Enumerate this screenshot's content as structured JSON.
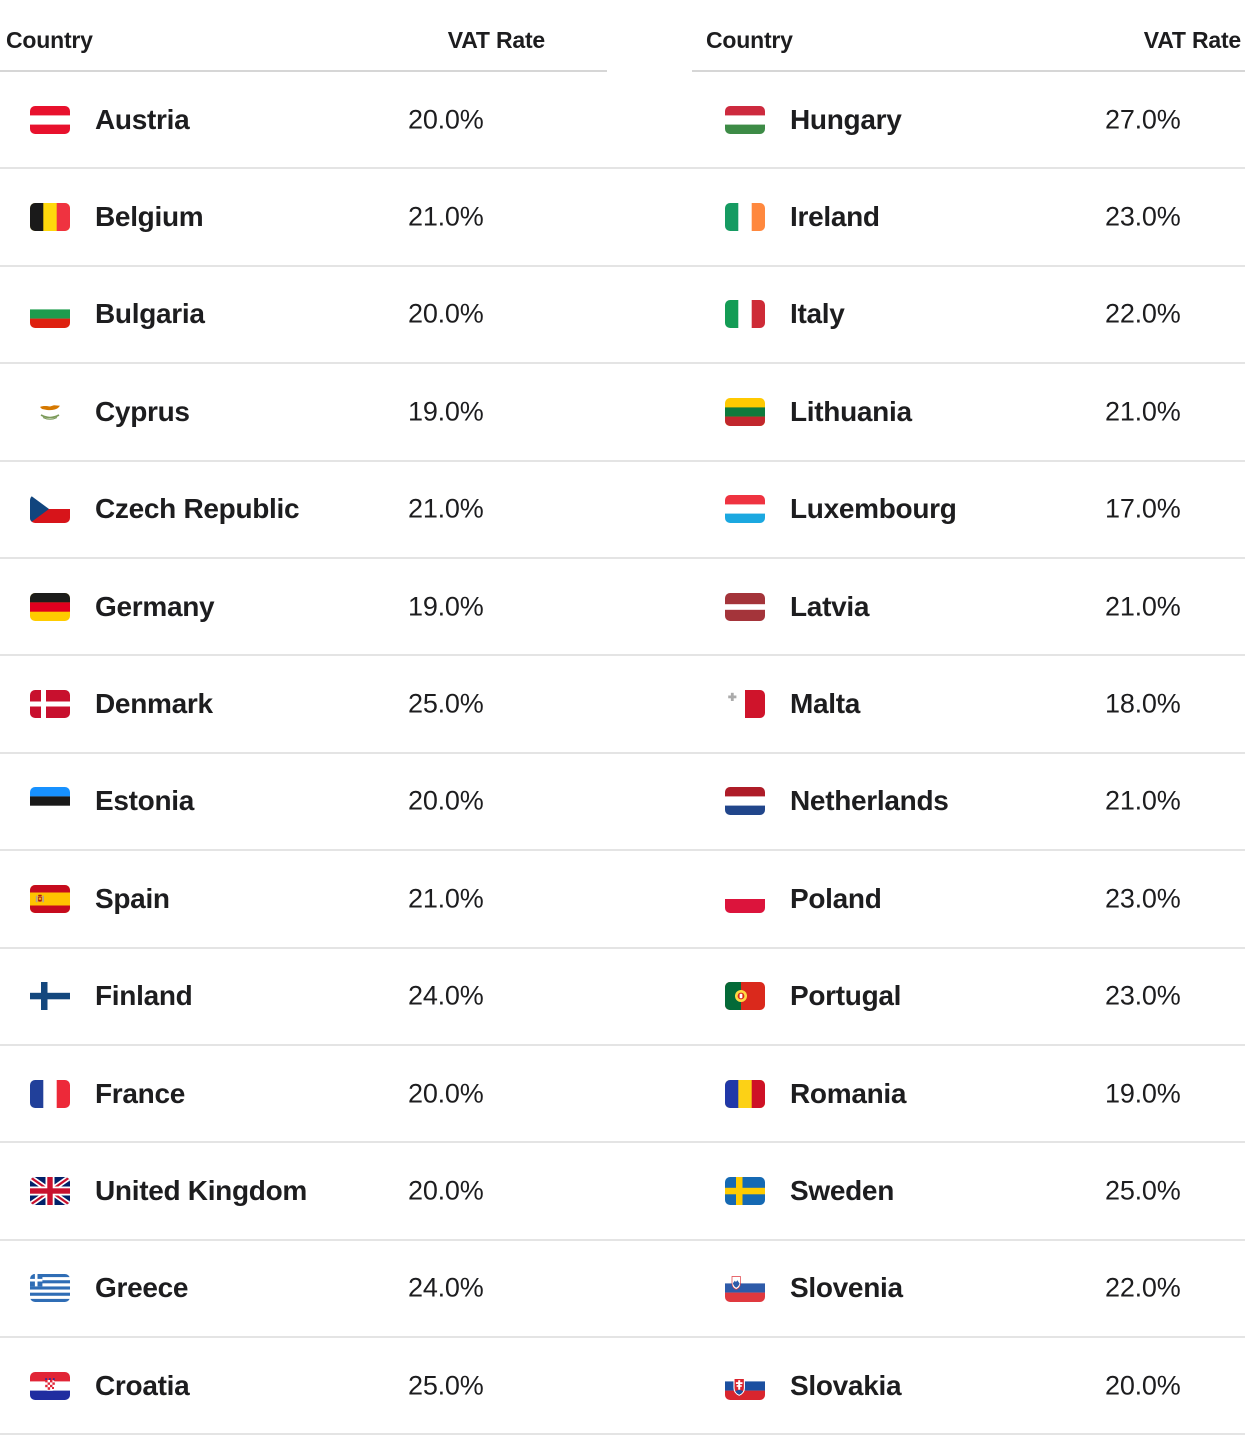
{
  "colors": {
    "text": "#1d1d1f",
    "row_separator": "#e4e4e4",
    "header_underline": "#d6d6d6",
    "row_background": "#ffffff"
  },
  "tables": [
    {
      "header": {
        "country": "Country",
        "vat": "VAT Rate"
      },
      "rows": [
        {
          "country": "Austria",
          "vat": "20.0%",
          "flag": "flag-austria-icon",
          "code": "at"
        },
        {
          "country": "Belgium",
          "vat": "21.0%",
          "flag": "flag-belgium-icon",
          "code": "be"
        },
        {
          "country": "Bulgaria",
          "vat": "20.0%",
          "flag": "flag-bulgaria-icon",
          "code": "bg"
        },
        {
          "country": "Cyprus",
          "vat": "19.0%",
          "flag": "flag-cyprus-icon",
          "code": "cy"
        },
        {
          "country": "Czech Republic",
          "vat": "21.0%",
          "flag": "flag-czech-republic-icon",
          "code": "cz"
        },
        {
          "country": "Germany",
          "vat": "19.0%",
          "flag": "flag-germany-icon",
          "code": "de"
        },
        {
          "country": "Denmark",
          "vat": "25.0%",
          "flag": "flag-denmark-icon",
          "code": "dk"
        },
        {
          "country": "Estonia",
          "vat": "20.0%",
          "flag": "flag-estonia-icon",
          "code": "ee"
        },
        {
          "country": "Spain",
          "vat": "21.0%",
          "flag": "flag-spain-icon",
          "code": "es"
        },
        {
          "country": "Finland",
          "vat": "24.0%",
          "flag": "flag-finland-icon",
          "code": "fi"
        },
        {
          "country": "France",
          "vat": "20.0%",
          "flag": "flag-france-icon",
          "code": "fr"
        },
        {
          "country": "United Kingdom",
          "vat": "20.0%",
          "flag": "flag-united-kingdom-icon",
          "code": "gb"
        },
        {
          "country": "Greece",
          "vat": "24.0%",
          "flag": "flag-greece-icon",
          "code": "gr"
        },
        {
          "country": "Croatia",
          "vat": "25.0%",
          "flag": "flag-croatia-icon",
          "code": "hr"
        }
      ]
    },
    {
      "header": {
        "country": "Country",
        "vat": "VAT Rate"
      },
      "rows": [
        {
          "country": "Hungary",
          "vat": "27.0%",
          "flag": "flag-hungary-icon",
          "code": "hu"
        },
        {
          "country": "Ireland",
          "vat": "23.0%",
          "flag": "flag-ireland-icon",
          "code": "ie"
        },
        {
          "country": "Italy",
          "vat": "22.0%",
          "flag": "flag-italy-icon",
          "code": "it"
        },
        {
          "country": "Lithuania",
          "vat": "21.0%",
          "flag": "flag-lithuania-icon",
          "code": "lt"
        },
        {
          "country": "Luxembourg",
          "vat": "17.0%",
          "flag": "flag-luxembourg-icon",
          "code": "lu"
        },
        {
          "country": "Latvia",
          "vat": "21.0%",
          "flag": "flag-latvia-icon",
          "code": "lv"
        },
        {
          "country": "Malta",
          "vat": "18.0%",
          "flag": "flag-malta-icon",
          "code": "mt"
        },
        {
          "country": "Netherlands",
          "vat": "21.0%",
          "flag": "flag-netherlands-icon",
          "code": "nl"
        },
        {
          "country": "Poland",
          "vat": "23.0%",
          "flag": "flag-poland-icon",
          "code": "pl"
        },
        {
          "country": "Portugal",
          "vat": "23.0%",
          "flag": "flag-portugal-icon",
          "code": "pt"
        },
        {
          "country": "Romania",
          "vat": "19.0%",
          "flag": "flag-romania-icon",
          "code": "ro"
        },
        {
          "country": "Sweden",
          "vat": "25.0%",
          "flag": "flag-sweden-icon",
          "code": "se"
        },
        {
          "country": "Slovenia",
          "vat": "22.0%",
          "flag": "flag-slovenia-icon",
          "code": "si"
        },
        {
          "country": "Slovakia",
          "vat": "20.0%",
          "flag": "flag-slovakia-icon",
          "code": "sk"
        }
      ]
    }
  ]
}
